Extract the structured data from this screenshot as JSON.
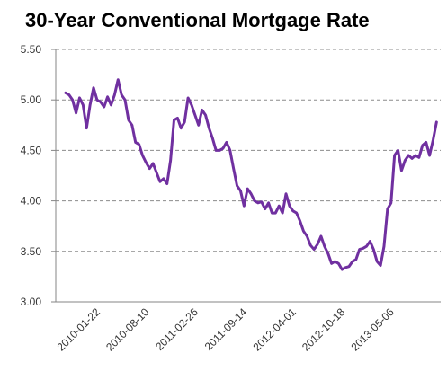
{
  "chart_data": {
    "type": "line",
    "title": "30-Year Conventional Mortgage Rate",
    "categories": [
      null,
      null,
      null,
      null,
      null,
      null,
      null,
      null,
      null,
      null,
      "2010-01-22",
      null,
      null,
      null,
      null,
      null,
      null,
      null,
      null,
      null,
      null,
      null,
      null,
      null,
      "2010-08-10",
      null,
      null,
      null,
      null,
      null,
      null,
      null,
      null,
      null,
      null,
      null,
      null,
      null,
      "2011-02-26",
      null,
      null,
      null,
      null,
      null,
      null,
      null,
      null,
      null,
      null,
      null,
      null,
      null,
      "2011-09-14",
      null,
      null,
      null,
      null,
      null,
      null,
      null,
      null,
      null,
      null,
      null,
      null,
      null,
      "2012-04-01",
      null,
      null,
      null,
      null,
      null,
      null,
      null,
      null,
      null,
      null,
      null,
      null,
      null,
      "2012-10-18",
      null,
      null,
      null,
      null,
      null,
      null,
      null,
      null,
      null,
      null,
      null,
      null,
      null,
      "2013-05-06",
      null,
      null,
      null,
      null,
      null,
      null,
      null,
      null,
      null,
      null,
      null,
      null
    ],
    "series": [
      {
        "name": "30-Year Conventional Mortgage Rate",
        "color": "#7030a0",
        "values": [
          5.07,
          5.05,
          5.0,
          4.87,
          5.02,
          4.95,
          4.72,
          4.95,
          5.12,
          5.0,
          4.98,
          4.93,
          5.03,
          4.95,
          5.05,
          5.2,
          5.05,
          5.0,
          4.8,
          4.75,
          4.58,
          4.56,
          4.45,
          4.38,
          4.32,
          4.37,
          4.28,
          4.19,
          4.22,
          4.17,
          4.4,
          4.8,
          4.82,
          4.72,
          4.78,
          5.02,
          4.95,
          4.85,
          4.75,
          4.9,
          4.85,
          4.72,
          4.62,
          4.5,
          4.5,
          4.52,
          4.58,
          4.5,
          4.32,
          4.15,
          4.1,
          3.95,
          4.12,
          4.07,
          4.0,
          3.98,
          3.99,
          3.92,
          3.98,
          3.88,
          3.88,
          3.95,
          3.88,
          4.07,
          3.95,
          3.9,
          3.88,
          3.8,
          3.7,
          3.65,
          3.56,
          3.52,
          3.57,
          3.65,
          3.55,
          3.48,
          3.38,
          3.4,
          3.38,
          3.32,
          3.34,
          3.35,
          3.4,
          3.42,
          3.52,
          3.53,
          3.55,
          3.6,
          3.52,
          3.4,
          3.36,
          3.55,
          3.92,
          3.98,
          4.45,
          4.5,
          4.3,
          4.4,
          4.45,
          4.42,
          4.45,
          4.43,
          4.55,
          4.58,
          4.45,
          4.6,
          4.78
        ]
      }
    ],
    "ylim": [
      3.0,
      5.5
    ],
    "yticks": [
      {
        "value": 3.0,
        "label": "3.00"
      },
      {
        "value": 3.5,
        "label": "3.50"
      },
      {
        "value": 4.0,
        "label": "4.00"
      },
      {
        "value": 4.5,
        "label": "4.50"
      },
      {
        "value": 5.0,
        "label": "5.00"
      },
      {
        "value": 5.5,
        "label": "5.50"
      }
    ],
    "grid": true
  }
}
